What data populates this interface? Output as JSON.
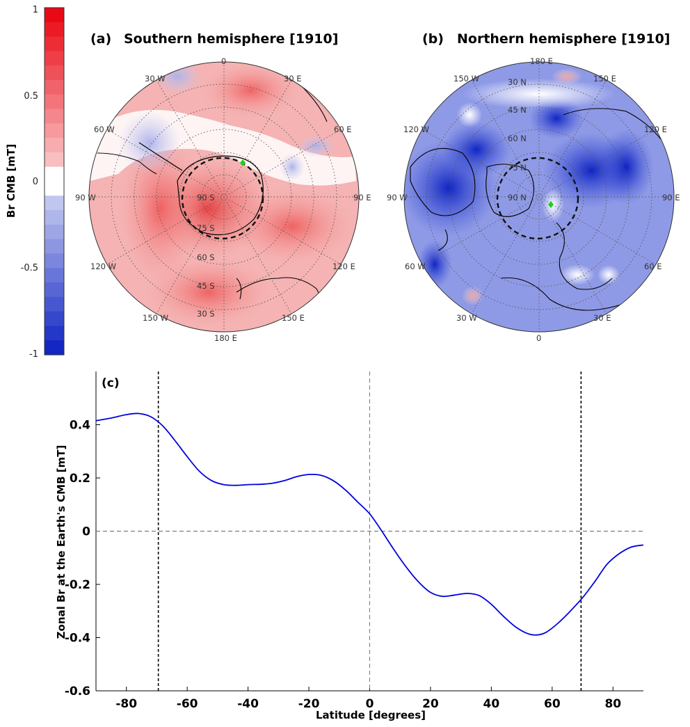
{
  "colorbar": {
    "label": "Br CMB [mT]",
    "ticks": [
      "1",
      "0.5",
      "0",
      "-0.5",
      "-1"
    ],
    "range": [
      -1,
      1
    ],
    "colors": {
      "positive": "#e8000b",
      "negative": "#0a1fc0",
      "zero": "#ffffff"
    }
  },
  "panel_a": {
    "letter": "(a)",
    "title": "Southern hemisphere [1910]",
    "lon_labels": [
      "0",
      "30 E",
      "60 E",
      "90 E",
      "120 E",
      "150 E",
      "180 E",
      "150 W",
      "120 W",
      "90 W",
      "60 W",
      "30 W"
    ],
    "lat_labels": [
      "90 S",
      "75 S",
      "60 S",
      "45 S",
      "30 S"
    ]
  },
  "panel_b": {
    "letter": "(b)",
    "title": "Northern hemisphere [1910]",
    "lon_labels": [
      "180 E",
      "150 E",
      "120 E",
      "90 E",
      "60 E",
      "30 E",
      "0",
      "30 W",
      "60 W",
      "90 W",
      "120 W",
      "150 W"
    ],
    "lat_labels": [
      "30 N",
      "45 N",
      "60 N",
      "75 N",
      "90 N"
    ]
  },
  "chart_data": {
    "type": "line",
    "panel_label": "(c)",
    "title": "",
    "xlabel": "Latitude [degrees]",
    "ylabel": "Zonal Br at the Earth's CMB [mT]",
    "xlim": [
      -90,
      90
    ],
    "ylim": [
      -0.6,
      0.6
    ],
    "xticks": [
      -80,
      -60,
      -40,
      -20,
      0,
      20,
      40,
      60,
      80
    ],
    "yticks": [
      -0.6,
      -0.4,
      -0.2,
      0,
      0.2,
      0.4
    ],
    "ytick_labels": [
      "-0.6",
      "-0.4",
      "-0.2",
      "0",
      "0.2",
      "0.4"
    ],
    "series": [
      {
        "color": "#0000dd",
        "x": [
          -90,
          -85,
          -80,
          -76,
          -72,
          -68,
          -64,
          -60,
          -56,
          -52,
          -48,
          -44,
          -40,
          -36,
          -32,
          -28,
          -24,
          -20,
          -16,
          -12,
          -8,
          -4,
          0,
          4,
          8,
          12,
          16,
          20,
          24,
          28,
          32,
          36,
          40,
          44,
          48,
          52,
          55,
          58,
          62,
          66,
          70,
          74,
          78,
          82,
          86,
          90
        ],
        "y": [
          0.415,
          0.425,
          0.438,
          0.442,
          0.43,
          0.395,
          0.34,
          0.28,
          0.225,
          0.19,
          0.175,
          0.172,
          0.175,
          0.176,
          0.18,
          0.19,
          0.205,
          0.213,
          0.21,
          0.19,
          0.155,
          0.11,
          0.065,
          0.0,
          -0.07,
          -0.135,
          -0.19,
          -0.23,
          -0.245,
          -0.24,
          -0.234,
          -0.242,
          -0.275,
          -0.32,
          -0.36,
          -0.385,
          -0.39,
          -0.38,
          -0.345,
          -0.3,
          -0.25,
          -0.19,
          -0.125,
          -0.085,
          -0.06,
          -0.052
        ]
      }
    ],
    "vlines_dotted": [
      -69.5,
      69.5
    ],
    "vline_dashed": 0,
    "hline_dashed": 0
  }
}
